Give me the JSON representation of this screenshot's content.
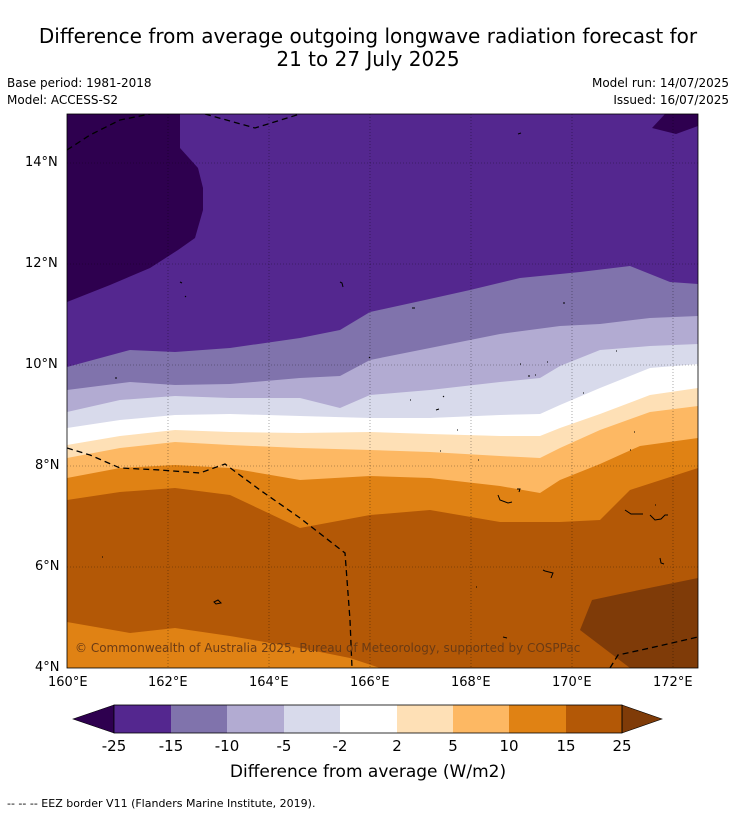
{
  "header": {
    "title_line1": "Difference from average outgoing longwave radiation forecast for",
    "title_line2": "21 to 27 July 2025",
    "base_period": "Base period: 1981-2018",
    "model": "Model: ACCESS-S2",
    "model_run": "Model run: 14/07/2025",
    "issued": "Issued: 16/07/2025"
  },
  "map": {
    "lat_labels": [
      "14°N",
      "12°N",
      "10°N",
      "8°N",
      "6°N",
      "4°N"
    ],
    "lon_labels": [
      "160°E",
      "162°E",
      "164°E",
      "166°E",
      "168°E",
      "170°E",
      "172°E"
    ],
    "copyright": "© Commonwealth of Australia 2025, Bureau of Meteorology, supported by COSPPac"
  },
  "colorbar": {
    "labels": [
      "-25",
      "-15",
      "-10",
      "-5",
      "-2",
      "2",
      "5",
      "10",
      "15",
      "25"
    ],
    "title": "Difference from average (W/m2)",
    "colors": {
      "under": "#2e004f",
      "c1": "#54278f",
      "c2": "#8073ac",
      "c3": "#b2abd2",
      "c4": "#d8daeb",
      "c5": "#ffffff",
      "c6": "#fee0b6",
      "c7": "#fdb863",
      "c8": "#e08214",
      "c9": "#b35806",
      "over": "#7f3b08"
    }
  },
  "footer": {
    "legend": "--  --  -- EEZ border V11 (Flanders Marine Institute, 2019)."
  }
}
